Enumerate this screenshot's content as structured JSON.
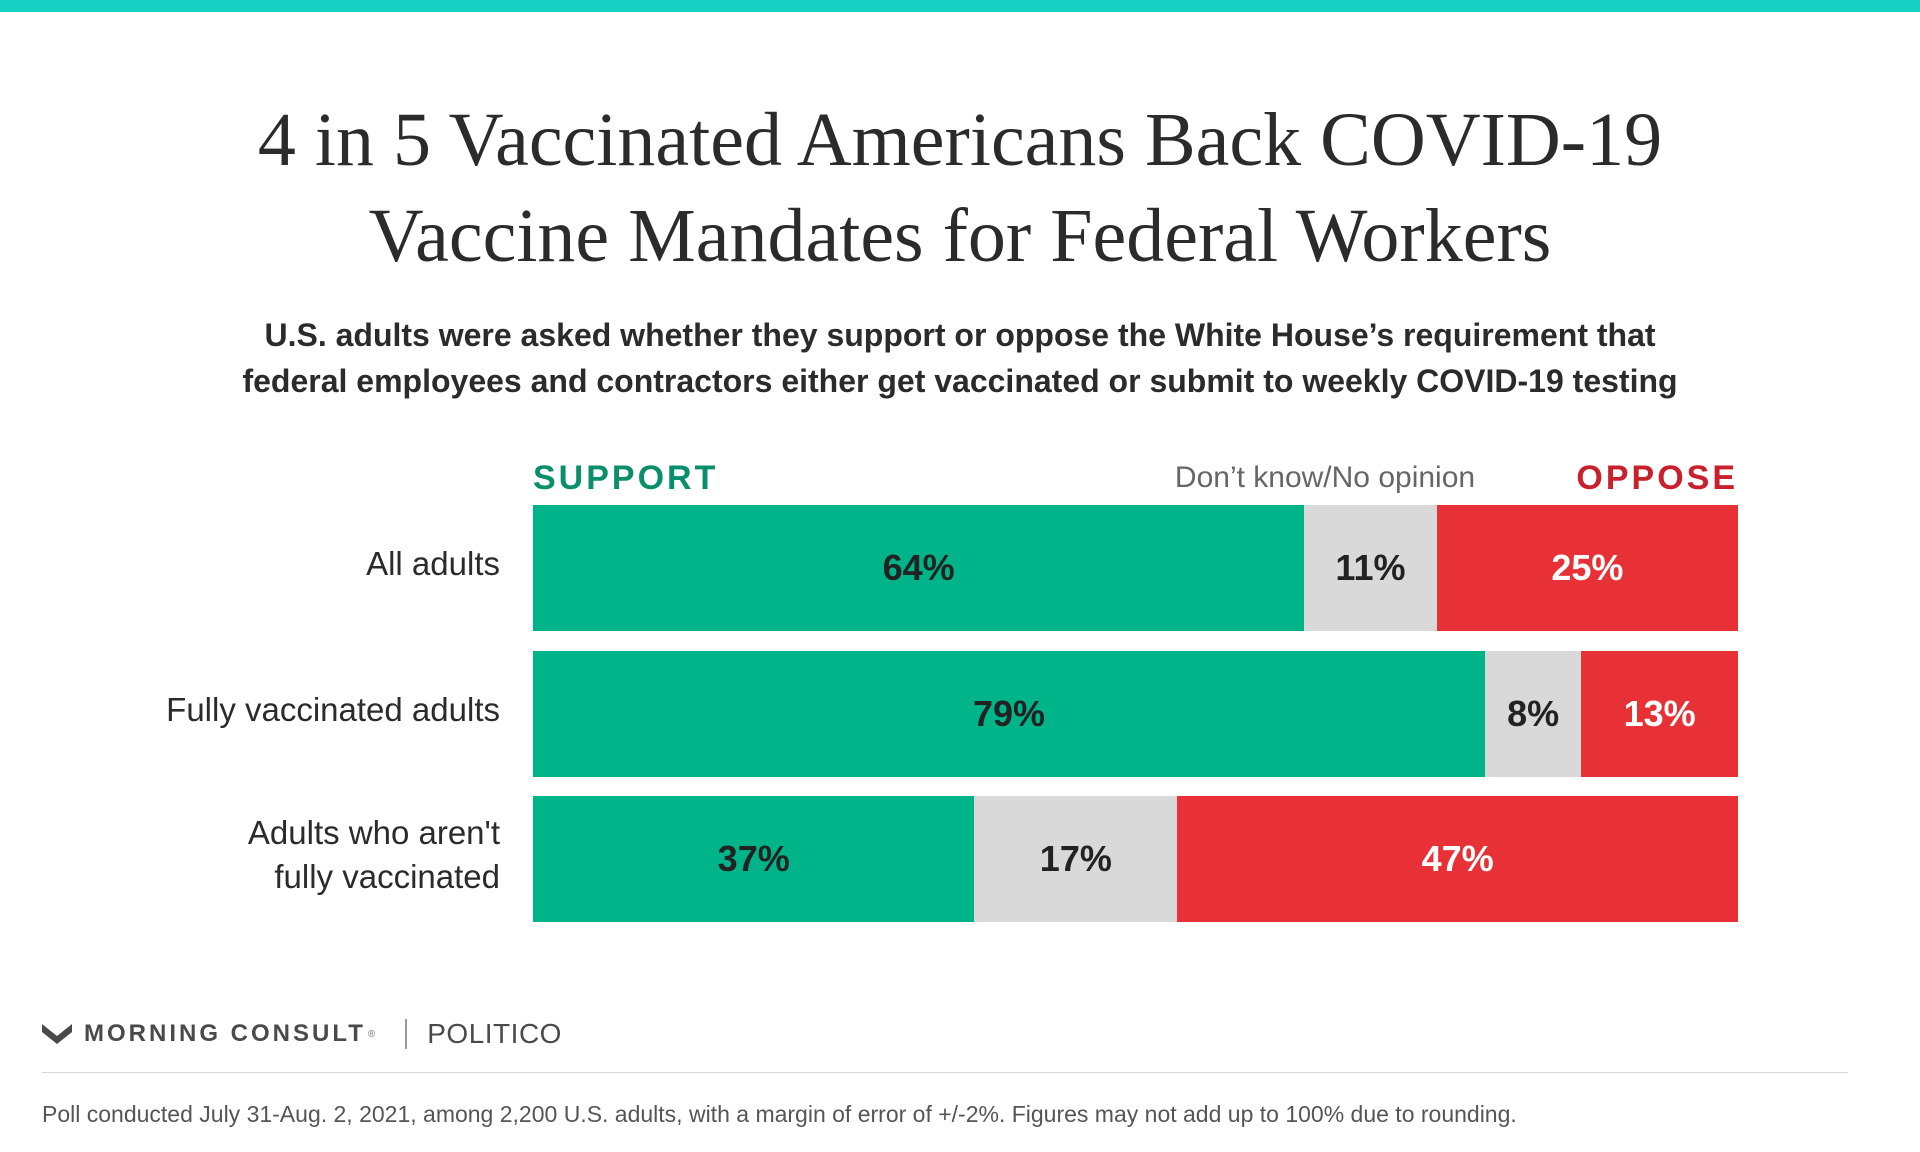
{
  "header": {
    "title_line1": "4 in 5 Vaccinated Americans Back COVID-19",
    "title_line2": "Vaccine Mandates for Federal Workers",
    "subtitle_line1": "U.S. adults were asked whether they support or oppose the White House’s requirement that",
    "subtitle_line2": "federal employees and contractors either get vaccinated or submit to weekly COVID-19 testing"
  },
  "legend": {
    "support": "SUPPORT",
    "dont_know": "Don’t know/No opinion",
    "oppose": "OPPOSE"
  },
  "colors": {
    "accent_bar": "#17d0c4",
    "support": "#00b48a",
    "dont_know": "#d9d9d9",
    "oppose": "#e83137",
    "support_text": "#0a8f6c",
    "oppose_text": "#c8202c"
  },
  "chart_data": {
    "type": "bar",
    "orientation": "horizontal",
    "stacked": true,
    "title": "4 in 5 Vaccinated Americans Back COVID-19 Vaccine Mandates for Federal Workers",
    "subtitle": "U.S. adults were asked whether they support or oppose the White House’s requirement that federal employees and contractors either get vaccinated or submit to weekly COVID-19 testing",
    "categories": [
      {
        "line1": "All adults",
        "line2": ""
      },
      {
        "line1": "Fully vaccinated adults",
        "line2": ""
      },
      {
        "line1": "Adults who aren't",
        "line2": "fully vaccinated"
      }
    ],
    "series": [
      {
        "name": "SUPPORT",
        "values": [
          64,
          79,
          37
        ],
        "labels": [
          "64%",
          "79%",
          "37%"
        ]
      },
      {
        "name": "Don’t know/No opinion",
        "values": [
          11,
          8,
          17
        ],
        "labels": [
          "11%",
          "8%",
          "17%"
        ]
      },
      {
        "name": "OPPOSE",
        "values": [
          25,
          13,
          47
        ],
        "labels": [
          "25%",
          "13%",
          "47%"
        ]
      }
    ],
    "legend_position": "top",
    "grid": false
  },
  "footer": {
    "brand": "MORNING CONSULT",
    "brand_mark": "®",
    "partner": "POLITICO",
    "note": "Poll conducted July 31-Aug. 2, 2021, among 2,200 U.S. adults, with a margin of error of +/-2%. Figures may not add up to 100% due to rounding."
  }
}
